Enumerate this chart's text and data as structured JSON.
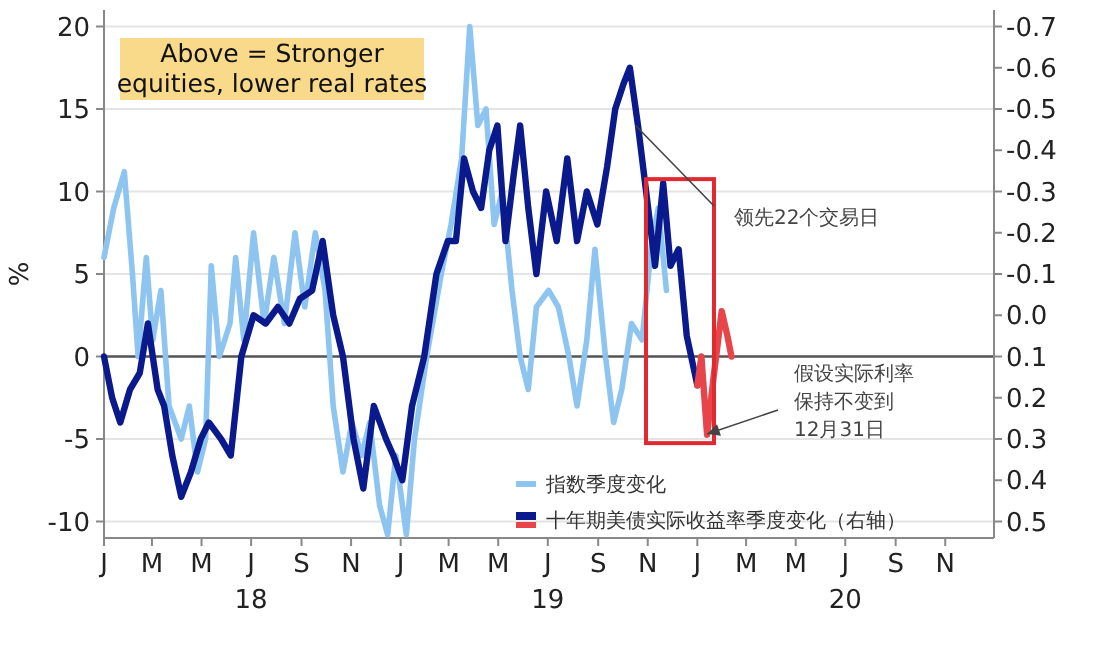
{
  "chart_data": {
    "type": "line",
    "ylabel": "%",
    "xlim": [
      "2018-01-01",
      "2020-12-31"
    ],
    "ylim": [
      -11,
      21
    ],
    "y2lim": [
      0.54,
      -0.74
    ],
    "yticks": [
      -10,
      -5,
      0,
      5,
      10,
      15,
      20
    ],
    "y2ticks": [
      {
        "value": -0.7,
        "label": "-0.7"
      },
      {
        "value": -0.6,
        "label": "-0.6"
      },
      {
        "value": -0.5,
        "label": "-0.5"
      },
      {
        "value": -0.4,
        "label": "-0.4"
      },
      {
        "value": -0.3,
        "label": "-0.3"
      },
      {
        "value": -0.2,
        "label": "-0.2"
      },
      {
        "value": -0.1,
        "label": "-0.1"
      },
      {
        "value": 0,
        "label": "0.0"
      },
      {
        "value": 0.1,
        "label": "0.1"
      },
      {
        "value": 0.2,
        "label": "0.2"
      },
      {
        "value": 0.3,
        "label": "0.3"
      },
      {
        "value": 0.4,
        "label": "0.4"
      },
      {
        "value": 0.5,
        "label": "0.5"
      }
    ],
    "xticks": [
      {
        "value": "2018-01-01",
        "label": "J"
      },
      {
        "value": "2018-03-01",
        "label": "M"
      },
      {
        "value": "2018-05-01",
        "label": "M"
      },
      {
        "value": "2018-07-01",
        "label": "J\n18"
      },
      {
        "value": "2018-09-01",
        "label": "S"
      },
      {
        "value": "2018-11-01",
        "label": "N"
      },
      {
        "value": "2019-01-01",
        "label": "J"
      },
      {
        "value": "2019-03-01",
        "label": "M"
      },
      {
        "value": "2019-05-01",
        "label": "M"
      },
      {
        "value": "2019-07-01",
        "label": "J\n19"
      },
      {
        "value": "2019-09-01",
        "label": "S"
      },
      {
        "value": "2019-11-01",
        "label": "N"
      },
      {
        "value": "2020-01-01",
        "label": "J"
      },
      {
        "value": "2020-03-01",
        "label": "M"
      },
      {
        "value": "2020-05-01",
        "label": "M"
      },
      {
        "value": "2020-07-01",
        "label": "J\n20"
      },
      {
        "value": "2020-09-01",
        "label": "S"
      },
      {
        "value": "2020-11-01",
        "label": "N"
      }
    ],
    "grid": "y",
    "legend": "bottom right",
    "line_style": "solid",
    "marker": "none",
    "ref_lines": [
      {
        "axis": "y",
        "value": 0,
        "color": "#555555"
      }
    ],
    "annotations": [
      "Above = Stronger equities, lower real rates",
      {
        "text": "领先22个交易日",
        "x": "2019-10-17",
        "y": 14
      },
      {
        "text": "假设实际利率保持不变到12月31日",
        "x": "2020-01-13",
        "y": -4.7
      }
    ],
    "series": [
      {
        "name": "指数季度变化",
        "color": "#8ec5f0",
        "x": [
          "2018-01-01",
          "2018-01-13",
          "2018-01-26",
          "2018-02-05",
          "2018-02-12",
          "2018-02-22",
          "2018-03-02",
          "2018-03-12",
          "2018-03-22",
          "2018-04-06",
          "2018-04-16",
          "2018-04-26",
          "2018-05-06",
          "2018-05-13",
          "2018-05-23",
          "2018-06-05",
          "2018-06-12",
          "2018-06-22",
          "2018-07-04",
          "2018-07-17",
          "2018-07-29",
          "2018-08-11",
          "2018-08-24",
          "2018-09-05",
          "2018-09-18",
          "2018-09-30",
          "2018-10-10",
          "2018-10-22",
          "2018-11-02",
          "2018-11-14",
          "2018-11-24",
          "2018-12-06",
          "2018-12-16",
          "2018-12-26",
          "2019-01-08",
          "2019-01-18",
          "2019-02-02",
          "2019-02-20",
          "2019-03-04",
          "2019-03-17",
          "2019-03-27",
          "2019-04-06",
          "2019-04-16",
          "2019-04-26",
          "2019-05-06",
          "2019-05-18",
          "2019-05-28",
          "2019-06-07",
          "2019-06-17",
          "2019-07-02",
          "2019-07-14",
          "2019-07-27",
          "2019-08-06",
          "2019-08-18",
          "2019-08-28",
          "2019-09-10",
          "2019-09-20",
          "2019-09-30",
          "2019-10-12",
          "2019-10-25",
          "2019-11-06",
          "2019-11-14",
          "2019-11-24"
        ],
        "values": [
          6,
          9,
          11.2,
          5,
          0,
          6,
          1,
          4,
          -3,
          -5,
          -3,
          -7,
          -5,
          5.5,
          0,
          2,
          6,
          1,
          7.5,
          2,
          6,
          2,
          7.5,
          3,
          7.5,
          4,
          -3,
          -7,
          -4,
          -6,
          -4,
          -9,
          -10.8,
          -6,
          -10.8,
          -5,
          0,
          5,
          8,
          12,
          20,
          14,
          15,
          8,
          10,
          4,
          0,
          -2,
          3,
          4,
          3,
          0,
          -3,
          1,
          6.5,
          0,
          -4,
          -2,
          2,
          1,
          7,
          9,
          4
        ]
      },
      {
        "name": "十年期美债实际收益率季度变化（右轴）",
        "color": "#0a1a8c",
        "axis": "y2",
        "x": [
          "2018-01-01",
          "2018-01-11",
          "2018-01-21",
          "2018-02-02",
          "2018-02-14",
          "2018-02-24",
          "2018-03-08",
          "2018-03-16",
          "2018-03-26",
          "2018-04-06",
          "2018-04-18",
          "2018-04-30",
          "2018-05-10",
          "2018-05-25",
          "2018-06-06",
          "2018-06-19",
          "2018-07-04",
          "2018-07-19",
          "2018-08-03",
          "2018-08-17",
          "2018-08-30",
          "2018-09-14",
          "2018-09-27",
          "2018-10-10",
          "2018-10-22",
          "2018-11-04",
          "2018-11-16",
          "2018-11-29",
          "2018-12-14",
          "2018-12-23",
          "2019-01-03",
          "2019-01-15",
          "2019-01-30",
          "2019-02-14",
          "2019-02-28",
          "2019-03-10",
          "2019-03-20",
          "2019-03-31",
          "2019-04-10",
          "2019-04-20",
          "2019-04-30",
          "2019-05-10",
          "2019-05-20",
          "2019-05-28",
          "2019-06-07",
          "2019-06-17",
          "2019-06-29",
          "2019-07-12",
          "2019-07-25",
          "2019-08-06",
          "2019-08-18",
          "2019-08-31",
          "2019-09-12",
          "2019-09-22",
          "2019-10-02",
          "2019-10-10",
          "2019-10-20",
          "2019-10-30",
          "2019-11-10",
          "2019-11-20",
          "2019-11-29",
          "2019-12-09",
          "2019-12-19",
          "2020-01-01"
        ],
        "values": [
          0.1,
          0.2,
          0.26,
          0.18,
          0.14,
          0.02,
          0.18,
          0.22,
          0.34,
          0.44,
          0.38,
          0.3,
          0.26,
          0.3,
          0.34,
          0.1,
          0,
          0.02,
          -0.02,
          0.02,
          -0.04,
          -0.06,
          -0.18,
          0,
          0.1,
          0.3,
          0.42,
          0.22,
          0.3,
          0.34,
          0.4,
          0.22,
          0.1,
          -0.1,
          -0.18,
          -0.18,
          -0.38,
          -0.3,
          -0.26,
          -0.4,
          -0.46,
          -0.18,
          -0.34,
          -0.46,
          -0.26,
          -0.1,
          -0.3,
          -0.18,
          -0.38,
          -0.18,
          -0.3,
          -0.22,
          -0.36,
          -0.5,
          -0.56,
          -0.6,
          -0.46,
          -0.3,
          -0.12,
          -0.32,
          -0.12,
          -0.16,
          0.05,
          0.17
        ]
      },
      {
        "color": "#e8454a",
        "axis": "y2",
        "x": [
          "2020-01-01",
          "2020-01-06",
          "2020-01-13",
          "2020-01-21",
          "2020-01-31",
          "2020-02-07",
          "2020-02-12"
        ],
        "values": [
          0.17,
          0.1,
          0.29,
          0.15,
          -0.01,
          0.05,
          0.1
        ]
      }
    ]
  }
}
